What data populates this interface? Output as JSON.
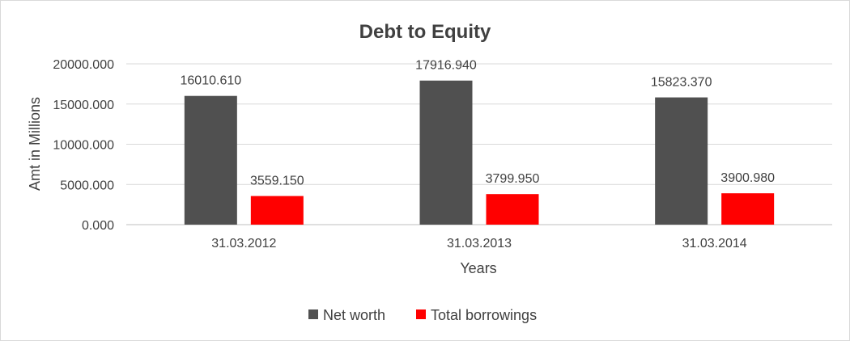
{
  "chart_data": {
    "type": "bar",
    "title": "Debt to Equity",
    "xlabel": "Years",
    "ylabel": "Amt in Millions",
    "categories": [
      "31.03.2012",
      "31.03.2013",
      "31.03.2014"
    ],
    "series": [
      {
        "name": "Net worth",
        "color": "#505050",
        "values": [
          16010.61,
          17916.94,
          15823.37
        ],
        "labels": [
          "16010.610",
          "17916.940",
          "15823.370"
        ]
      },
      {
        "name": "Total borrowings",
        "color": "#ff0000",
        "values": [
          3559.15,
          3799.95,
          3900.98
        ],
        "labels": [
          "3559.150",
          "3799.950",
          "3900.980"
        ]
      }
    ],
    "ylim": [
      0,
      20000
    ],
    "yticks": [
      {
        "value": 0,
        "label": "0.000"
      },
      {
        "value": 5000,
        "label": "5000.000"
      },
      {
        "value": 10000,
        "label": "10000.000"
      },
      {
        "value": 15000,
        "label": "15000.000"
      },
      {
        "value": 20000,
        "label": "20000.000"
      }
    ],
    "grid": true,
    "legend_position": "bottom"
  }
}
